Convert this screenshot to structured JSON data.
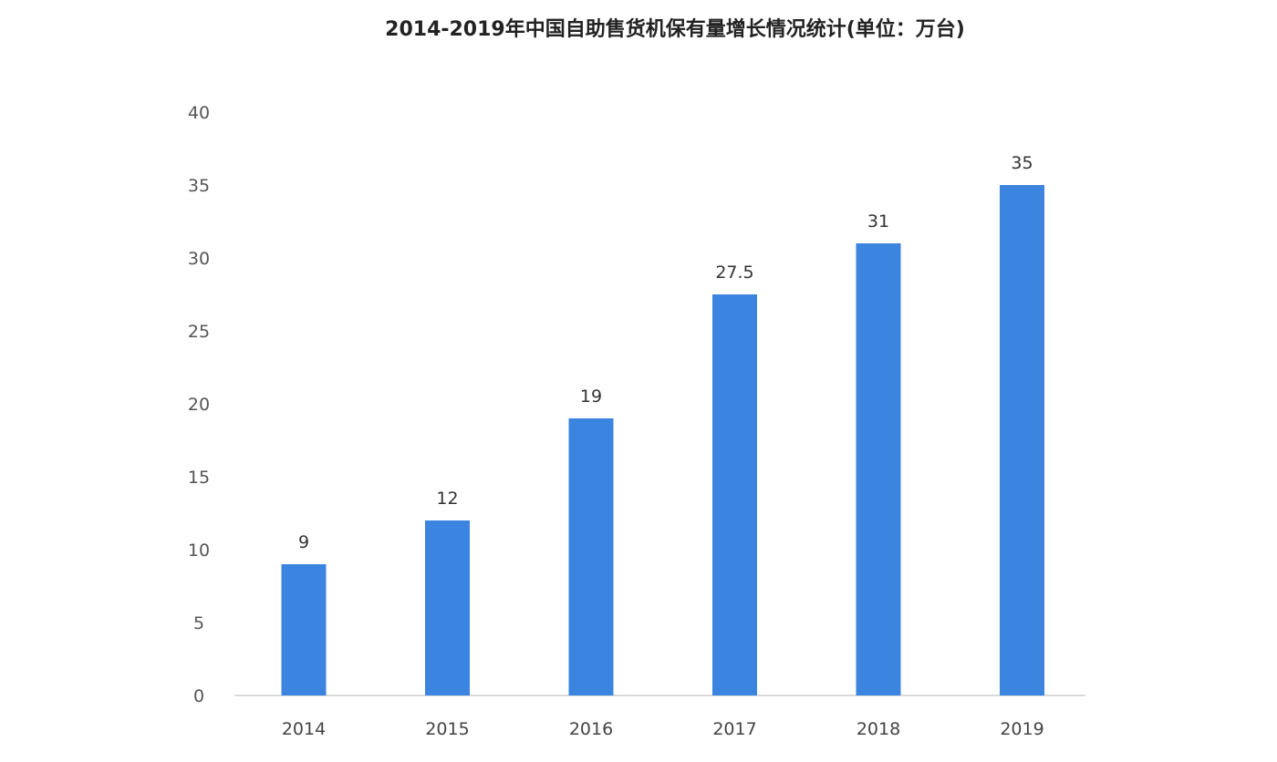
{
  "chart_data": {
    "type": "bar",
    "title": "2014-2019年中国自助售货机保有量增长情况统计(单位：万台)",
    "xlabel": "",
    "ylabel": "",
    "categories": [
      "2014",
      "2015",
      "2016",
      "2017",
      "2018",
      "2019"
    ],
    "values": [
      9,
      12,
      19,
      27.5,
      31,
      35
    ],
    "data_labels": [
      "9",
      "12",
      "19",
      "27.5",
      "31",
      "35"
    ],
    "ylim": [
      0,
      40
    ],
    "yticks": [
      0,
      5,
      10,
      15,
      20,
      25,
      30,
      35,
      40
    ],
    "grid": false,
    "legend": "none",
    "bar_color": "#3b84e0",
    "axis_color": "#d9d9d9"
  }
}
